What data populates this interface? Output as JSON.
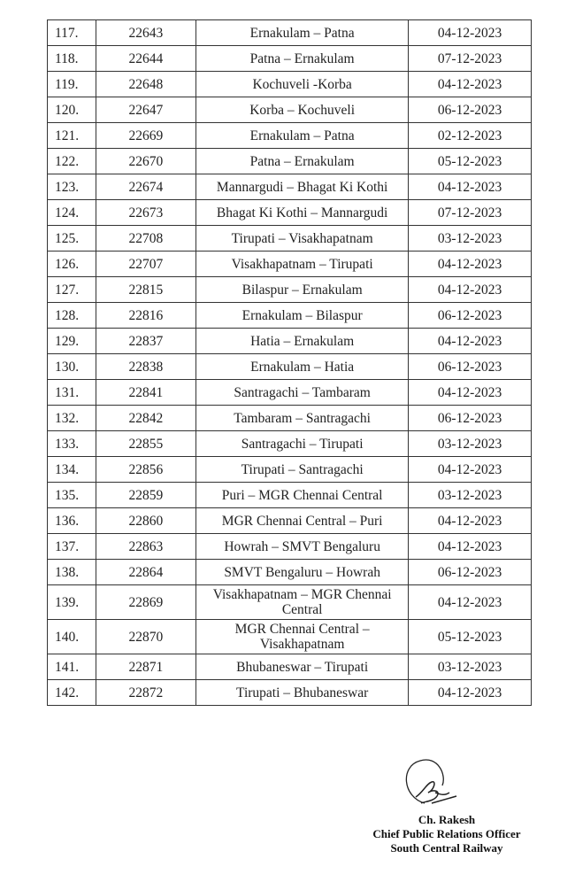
{
  "rows": [
    {
      "sno": "117.",
      "train": "22643",
      "route": "Ernakulam – Patna",
      "date": "04-12-2023"
    },
    {
      "sno": "118.",
      "train": "22644",
      "route": "Patna – Ernakulam",
      "date": "07-12-2023"
    },
    {
      "sno": "119.",
      "train": "22648",
      "route": "Kochuveli  -Korba",
      "date": "04-12-2023"
    },
    {
      "sno": "120.",
      "train": "22647",
      "route": "Korba – Kochuveli",
      "date": "06-12-2023"
    },
    {
      "sno": "121.",
      "train": "22669",
      "route": "Ernakulam – Patna",
      "date": "02-12-2023"
    },
    {
      "sno": "122.",
      "train": "22670",
      "route": "Patna – Ernakulam",
      "date": "05-12-2023"
    },
    {
      "sno": "123.",
      "train": "22674",
      "route": "Mannargudi – Bhagat Ki Kothi",
      "date": "04-12-2023"
    },
    {
      "sno": "124.",
      "train": "22673",
      "route": "Bhagat Ki Kothi – Mannargudi",
      "date": "07-12-2023"
    },
    {
      "sno": "125.",
      "train": "22708",
      "route": "Tirupati – Visakhapatnam",
      "date": "03-12-2023"
    },
    {
      "sno": "126.",
      "train": "22707",
      "route": "Visakhapatnam – Tirupati",
      "date": "04-12-2023"
    },
    {
      "sno": "127.",
      "train": "22815",
      "route": "Bilaspur – Ernakulam",
      "date": "04-12-2023"
    },
    {
      "sno": "128.",
      "train": "22816",
      "route": "Ernakulam – Bilaspur",
      "date": "06-12-2023"
    },
    {
      "sno": "129.",
      "train": "22837",
      "route": "Hatia – Ernakulam",
      "date": "04-12-2023"
    },
    {
      "sno": "130.",
      "train": "22838",
      "route": "Ernakulam – Hatia",
      "date": "06-12-2023"
    },
    {
      "sno": "131.",
      "train": "22841",
      "route": "Santragachi – Tambaram",
      "date": "04-12-2023"
    },
    {
      "sno": "132.",
      "train": "22842",
      "route": "Tambaram – Santragachi",
      "date": "06-12-2023"
    },
    {
      "sno": "133.",
      "train": "22855",
      "route": "Santragachi – Tirupati",
      "date": "03-12-2023"
    },
    {
      "sno": "134.",
      "train": "22856",
      "route": "Tirupati – Santragachi",
      "date": "04-12-2023"
    },
    {
      "sno": "135.",
      "train": "22859",
      "route": "Puri – MGR Chennai Central",
      "date": "03-12-2023"
    },
    {
      "sno": "136.",
      "train": "22860",
      "route": "MGR Chennai Central – Puri",
      "date": "04-12-2023"
    },
    {
      "sno": "137.",
      "train": "22863",
      "route": "Howrah – SMVT Bengaluru",
      "date": "04-12-2023"
    },
    {
      "sno": "138.",
      "train": "22864",
      "route": "SMVT Bengaluru – Howrah",
      "date": "06-12-2023"
    },
    {
      "sno": "139.",
      "train": "22869",
      "route": "Visakhapatnam – MGR Chennai Central",
      "date": "04-12-2023"
    },
    {
      "sno": "140.",
      "train": "22870",
      "route": "MGR Chennai Central – Visakhapatnam",
      "date": "05-12-2023"
    },
    {
      "sno": "141.",
      "train": "22871",
      "route": "Bhubaneswar – Tirupati",
      "date": "03-12-2023"
    },
    {
      "sno": "142.",
      "train": "22872",
      "route": "Tirupati – Bhubaneswar",
      "date": "04-12-2023"
    }
  ],
  "signatory": {
    "name": "Ch. Rakesh",
    "designation": "Chief Public Relations Officer",
    "organization": "South Central Railway"
  }
}
